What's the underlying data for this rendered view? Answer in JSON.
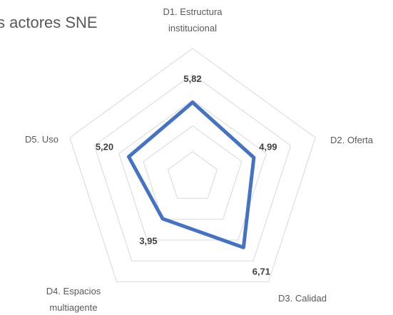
{
  "chart_data": {
    "type": "radar",
    "title": "s actores SNE",
    "categories": [
      [
        "D1. Estructura",
        "institucional"
      ],
      [
        "D2. Oferta"
      ],
      [
        "D3. Calidad"
      ],
      [
        "D4. Espacios",
        "multiagente"
      ],
      [
        "D5. Uso"
      ]
    ],
    "values": [
      5.82,
      4.99,
      6.71,
      3.95,
      5.2
    ],
    "value_labels": [
      "5,82",
      "4,99",
      "6,71",
      "3,95",
      "5,20"
    ],
    "color": "#4472c4",
    "ylim": [
      0,
      10
    ],
    "yticks": [
      2,
      4,
      6,
      8,
      10
    ],
    "grid": true
  }
}
